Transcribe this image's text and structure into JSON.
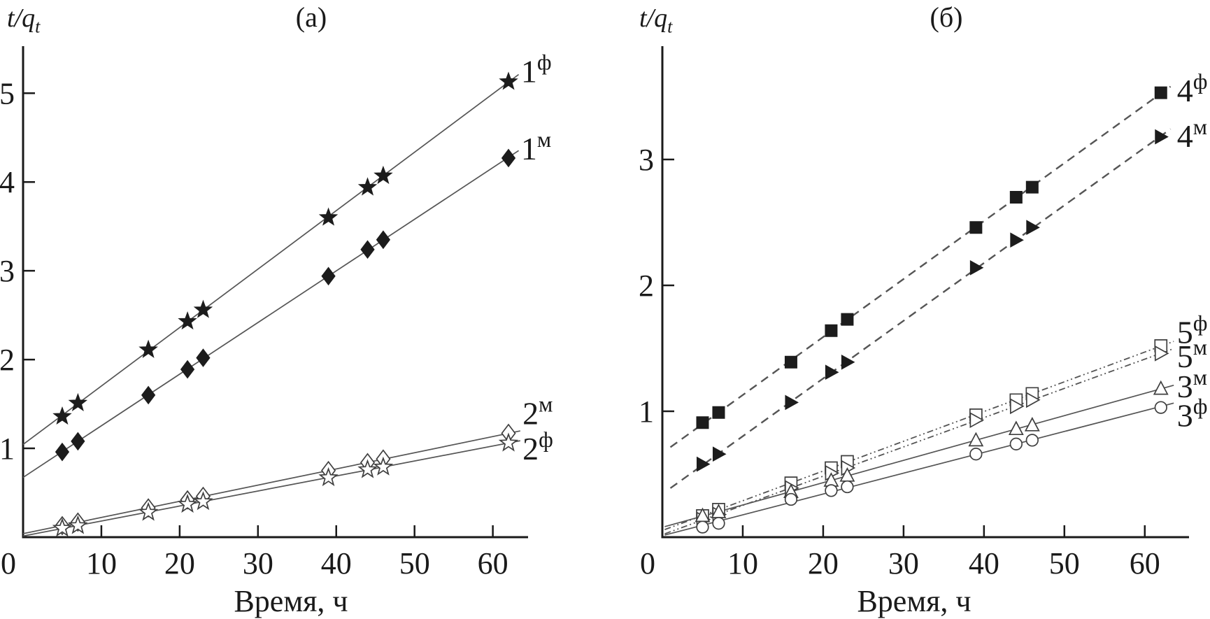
{
  "figure": {
    "background": "#ffffff",
    "text_color": "#1a1a1a",
    "axis_color": "#1a1a1a",
    "line_color": "#555555",
    "marker_color": "#1c1c1c",
    "marker_open_fill": "#ffffff",
    "ylabel_base": "t/q",
    "ylabel_sub": "t"
  },
  "chart_data": [
    {
      "type": "line",
      "title": "(а)",
      "xlabel": "Время, ч",
      "ylabel": "t/qt",
      "xlim": [
        0,
        64.5
      ],
      "ylim": [
        0,
        5.53
      ],
      "x_ticks": [
        0,
        10,
        20,
        30,
        40,
        50,
        60
      ],
      "y_ticks": [
        1,
        2,
        3,
        4,
        5
      ],
      "grid": false,
      "legend_position": "inline-right",
      "x": [
        5,
        7,
        16,
        21,
        23,
        39,
        44,
        46,
        62
      ],
      "series": [
        {
          "name": "1ф",
          "label_base": "1",
          "label_sup": "ф",
          "marker": "star",
          "filled": true,
          "line_style": "solid",
          "line_span": [
            0,
            63.3
          ],
          "label_xy": [
            63.6,
            5.25
          ],
          "values": [
            1.36,
            1.51,
            2.11,
            2.43,
            2.56,
            3.6,
            3.94,
            4.07,
            5.13
          ]
        },
        {
          "name": "1м",
          "label_base": "1",
          "label_sup": "м",
          "marker": "diamond",
          "filled": true,
          "line_style": "solid",
          "line_span": [
            0,
            63.3
          ],
          "label_xy": [
            63.6,
            4.38
          ],
          "values": [
            0.96,
            1.08,
            1.6,
            1.89,
            2.02,
            2.94,
            3.24,
            3.35,
            4.27
          ]
        },
        {
          "name": "2м",
          "label_base": "2",
          "label_sup": "м",
          "marker": "diamond",
          "filled": false,
          "line_style": "solid",
          "line_span": [
            0,
            63.5
          ],
          "label_xy": [
            63.8,
            1.4
          ],
          "values": [
            0.13,
            0.17,
            0.33,
            0.42,
            0.46,
            0.75,
            0.84,
            0.88,
            1.17
          ]
        },
        {
          "name": "2ф",
          "label_base": "2",
          "label_sup": "ф",
          "marker": "star",
          "filled": false,
          "line_style": "solid",
          "line_span": [
            0,
            63.5
          ],
          "label_xy": [
            63.8,
            1.0
          ],
          "values": [
            0.1,
            0.13,
            0.28,
            0.37,
            0.4,
            0.67,
            0.76,
            0.79,
            1.06
          ]
        }
      ]
    },
    {
      "type": "line",
      "title": "(б)",
      "xlabel": "Время, ч",
      "ylabel": "t/qt",
      "xlim": [
        0,
        65.5
      ],
      "ylim": [
        0,
        3.9
      ],
      "x_ticks": [
        0,
        10,
        20,
        30,
        40,
        50,
        60
      ],
      "y_ticks": [
        1,
        2,
        3
      ],
      "grid": false,
      "legend_position": "inline-right",
      "x": [
        5,
        7,
        16,
        21,
        23,
        39,
        44,
        46,
        62
      ],
      "series": [
        {
          "name": "4ф",
          "label_base": "4",
          "label_sup": "ф",
          "marker": "square",
          "filled": true,
          "line_style": "dashed",
          "line_span": [
            1,
            63.2
          ],
          "label_xy": [
            64.0,
            3.55
          ],
          "values": [
            0.91,
            0.99,
            1.39,
            1.64,
            1.73,
            2.46,
            2.7,
            2.78,
            3.53
          ]
        },
        {
          "name": "4м",
          "label_base": "4",
          "label_sup": "м",
          "marker": "triangle-right",
          "filled": true,
          "line_style": "dashed",
          "line_span": [
            1,
            63.2
          ],
          "label_xy": [
            64.0,
            3.19
          ],
          "values": [
            0.58,
            0.66,
            1.07,
            1.31,
            1.39,
            2.14,
            2.36,
            2.46,
            3.18
          ]
        },
        {
          "name": "5ф",
          "label_base": "5",
          "label_sup": "ф",
          "marker": "square",
          "filled": false,
          "line_style": "dashdot",
          "line_span": [
            0.3,
            63.6
          ],
          "label_xy": [
            64.0,
            1.63
          ],
          "values": [
            0.17,
            0.22,
            0.43,
            0.55,
            0.6,
            0.97,
            1.09,
            1.14,
            1.52
          ]
        },
        {
          "name": "5м",
          "label_base": "5",
          "label_sup": "м",
          "marker": "triangle-right",
          "filled": false,
          "line_style": "dashdot",
          "line_span": [
            0.3,
            63.6
          ],
          "label_xy": [
            64.0,
            1.44
          ],
          "values": [
            0.14,
            0.18,
            0.39,
            0.51,
            0.55,
            0.93,
            1.04,
            1.09,
            1.46
          ]
        },
        {
          "name": "3м",
          "label_base": "3",
          "label_sup": "м",
          "marker": "triangle-up",
          "filled": false,
          "line_style": "solid",
          "line_span": [
            0.3,
            63.6
          ],
          "label_xy": [
            64.0,
            1.2
          ],
          "values": [
            0.17,
            0.2,
            0.36,
            0.45,
            0.49,
            0.77,
            0.86,
            0.89,
            1.18
          ]
        },
        {
          "name": "3ф",
          "label_base": "3",
          "label_sup": "ф",
          "marker": "circle",
          "filled": false,
          "line_style": "solid",
          "line_span": [
            0.3,
            63.6
          ],
          "label_xy": [
            64.0,
            0.97
          ],
          "values": [
            0.08,
            0.11,
            0.3,
            0.37,
            0.4,
            0.66,
            0.74,
            0.77,
            1.03
          ]
        }
      ]
    }
  ]
}
